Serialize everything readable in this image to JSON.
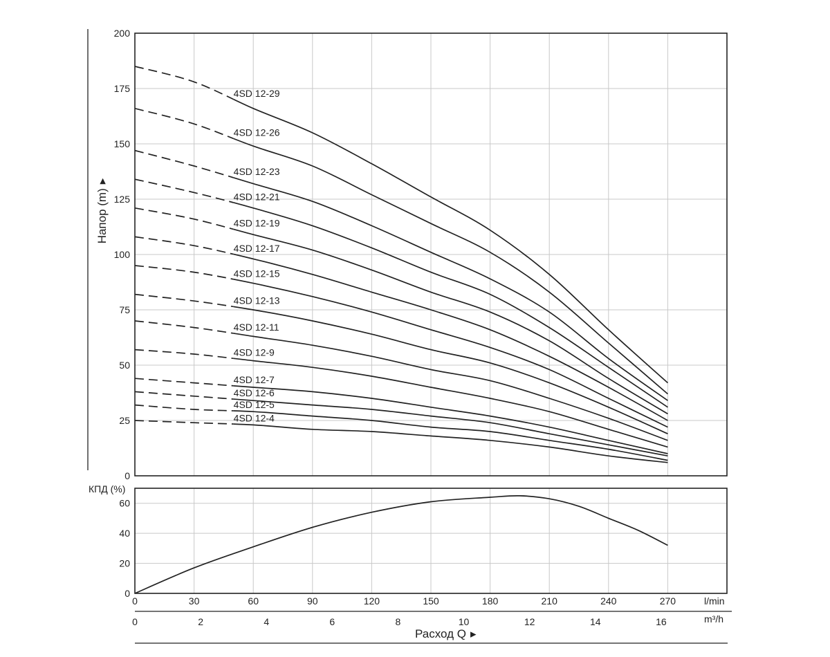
{
  "chart_data": [
    {
      "type": "line",
      "title": "",
      "xlabel": "",
      "ylabel": "Напор (m)",
      "ylabel_arrow": "▸",
      "xlim": [
        0,
        300
      ],
      "ylim": [
        0,
        200
      ],
      "x_ticks": [
        0,
        30,
        60,
        90,
        120,
        150,
        180,
        210,
        240,
        270
      ],
      "y_ticks": [
        0,
        25,
        50,
        75,
        100,
        125,
        150,
        175,
        200
      ],
      "grid": true,
      "dashed_until_x": 50,
      "series": [
        {
          "name": "4SD 12-29",
          "x": [
            0,
            30,
            60,
            90,
            120,
            150,
            180,
            210,
            240,
            270
          ],
          "y": [
            185,
            178,
            166,
            155,
            141,
            126,
            111,
            91,
            66,
            42
          ]
        },
        {
          "name": "4SD 12-26",
          "x": [
            0,
            30,
            60,
            90,
            120,
            150,
            180,
            210,
            240,
            270
          ],
          "y": [
            166,
            159,
            149,
            140,
            127,
            114,
            101,
            83,
            60,
            37
          ]
        },
        {
          "name": "4SD 12-23",
          "x": [
            0,
            30,
            60,
            90,
            120,
            150,
            180,
            210,
            240,
            270
          ],
          "y": [
            147,
            140,
            132,
            124,
            113,
            101,
            89,
            74,
            53,
            34
          ]
        },
        {
          "name": "4SD 12-21",
          "x": [
            0,
            30,
            60,
            90,
            120,
            150,
            180,
            210,
            240,
            270
          ],
          "y": [
            134,
            128,
            121,
            113,
            103,
            92,
            82,
            67,
            49,
            31
          ]
        },
        {
          "name": "4SD 12-19",
          "x": [
            0,
            30,
            60,
            90,
            120,
            150,
            180,
            210,
            240,
            270
          ],
          "y": [
            121,
            116,
            109,
            102,
            93,
            83,
            74,
            61,
            44,
            28
          ]
        },
        {
          "name": "4SD 12-17",
          "x": [
            0,
            30,
            60,
            90,
            120,
            150,
            180,
            210,
            240,
            270
          ],
          "y": [
            108,
            104,
            98,
            91,
            83,
            75,
            66,
            54,
            40,
            25
          ]
        },
        {
          "name": "4SD 12-15",
          "x": [
            0,
            30,
            60,
            90,
            120,
            150,
            180,
            210,
            240,
            270
          ],
          "y": [
            95,
            92,
            87,
            81,
            74,
            66,
            58,
            48,
            35,
            22
          ]
        },
        {
          "name": "4SD 12-13",
          "x": [
            0,
            30,
            60,
            90,
            120,
            150,
            180,
            210,
            240,
            270
          ],
          "y": [
            82,
            79,
            75,
            70,
            64,
            57,
            51,
            42,
            31,
            19
          ]
        },
        {
          "name": "4SD 12-11",
          "x": [
            0,
            30,
            60,
            90,
            120,
            150,
            180,
            210,
            240,
            270
          ],
          "y": [
            70,
            67,
            63,
            59,
            54,
            48,
            43,
            35,
            26,
            16
          ]
        },
        {
          "name": "4SD 12-9",
          "x": [
            0,
            30,
            60,
            90,
            120,
            150,
            180,
            210,
            240,
            270
          ],
          "y": [
            57,
            55,
            52,
            49,
            45,
            40,
            35,
            29,
            21,
            13
          ]
        },
        {
          "name": "4SD 12-7",
          "x": [
            0,
            30,
            60,
            90,
            120,
            150,
            180,
            210,
            240,
            270
          ],
          "y": [
            44,
            42,
            40,
            38,
            35,
            31,
            27,
            22,
            16,
            10
          ]
        },
        {
          "name": "4SD 12-6",
          "x": [
            0,
            30,
            60,
            90,
            120,
            150,
            180,
            210,
            240,
            270
          ],
          "y": [
            38,
            36,
            34,
            32,
            30,
            27,
            24,
            19,
            14,
            9
          ]
        },
        {
          "name": "4SD 12-5",
          "x": [
            0,
            30,
            60,
            90,
            120,
            150,
            180,
            210,
            240,
            270
          ],
          "y": [
            32,
            30,
            29,
            27,
            25,
            22,
            20,
            16,
            12,
            7
          ]
        },
        {
          "name": "4SD 12-4",
          "x": [
            0,
            30,
            60,
            90,
            120,
            150,
            180,
            210,
            240,
            270
          ],
          "y": [
            25,
            24,
            23,
            21,
            20,
            18,
            16,
            13,
            9,
            6
          ]
        }
      ]
    },
    {
      "type": "line",
      "title": "",
      "ylabel": "КПД (%)",
      "xlabel": "Расход Q",
      "xlabel_arrow": "▸",
      "xlim": [
        0,
        300
      ],
      "ylim": [
        0,
        70
      ],
      "y_ticks": [
        0,
        20,
        40,
        60
      ],
      "x_ticks": [
        0,
        30,
        60,
        90,
        120,
        150,
        180,
        210,
        240,
        270
      ],
      "x_unit": "l/min",
      "x2_ticks": [
        0,
        2,
        4,
        6,
        8,
        10,
        12,
        14,
        16
      ],
      "x2_unit": "m³/h",
      "x2_per_x": 0.06,
      "grid": true,
      "series": [
        {
          "x": [
            0,
            30,
            60,
            90,
            120,
            150,
            180,
            195,
            210,
            225,
            240,
            255,
            270
          ],
          "y": [
            0,
            17,
            31,
            44,
            54,
            61,
            64,
            65,
            63,
            58,
            50,
            42,
            32
          ]
        }
      ]
    }
  ]
}
